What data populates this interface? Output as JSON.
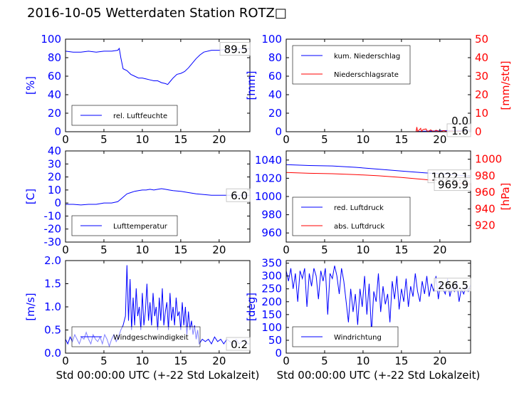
{
  "title": "2016-10-05 Wetterdaten Station ROTZ□",
  "colors": {
    "primary": "#0000ff",
    "secondary": "#ff0000",
    "frame": "#000000"
  },
  "chart_data": [
    {
      "type": "line",
      "ylabel": "[%]",
      "xlabel": "",
      "xlim": [
        0,
        24
      ],
      "ylim": [
        0,
        100
      ],
      "xticks": [
        0,
        5,
        10,
        15,
        20
      ],
      "yticks": [
        0,
        20,
        40,
        60,
        80,
        100
      ],
      "last_value_label": "89.5",
      "legend_position": "lower-left",
      "series": [
        {
          "name": "rel. Luftfeuchte",
          "color": "#0000ff",
          "x": [
            0,
            1,
            2,
            3,
            4,
            5,
            6,
            6.8,
            7.0,
            7.2,
            7.5,
            8,
            8.5,
            9,
            9.5,
            10,
            10.5,
            11,
            11.5,
            12,
            12.5,
            13,
            13.3,
            13.7,
            14,
            14.5,
            15,
            15.5,
            16,
            16.5,
            17,
            17.5,
            18,
            19,
            20,
            21,
            22,
            23,
            24
          ],
          "y": [
            87,
            86,
            86,
            87,
            86,
            87,
            87,
            88,
            90,
            80,
            68,
            66,
            62,
            60,
            58,
            58,
            57,
            56,
            55,
            55,
            53,
            52,
            51,
            55,
            58,
            62,
            63,
            65,
            69,
            74,
            79,
            83,
            86,
            88,
            88,
            89,
            89,
            89.5,
            89.5
          ]
        }
      ]
    },
    {
      "type": "line",
      "ylabel": "[mm]",
      "y2label": "[mm/std]",
      "xlabel": "",
      "xlim": [
        0,
        24
      ],
      "ylim": [
        0,
        100
      ],
      "y2lim": [
        0,
        50
      ],
      "xticks": [
        0,
        5,
        10,
        15,
        20
      ],
      "yticks": [
        0,
        20,
        40,
        60,
        80,
        100
      ],
      "y2ticks": [
        0,
        10,
        20,
        30,
        40,
        50
      ],
      "last_value_label": "1.6",
      "second_value_label": "0.0",
      "legend_position": "upper-left",
      "series": [
        {
          "name": "kum. Niederschlag",
          "color": "#0000ff",
          "x": [
            0,
            16.8,
            17.2,
            18,
            19,
            20,
            21,
            22,
            23,
            24
          ],
          "y": [
            0,
            0,
            0.3,
            0.5,
            0.8,
            1.0,
            1.2,
            1.4,
            1.5,
            1.6
          ]
        },
        {
          "name": "Niederschlagsrate",
          "color": "#ff0000",
          "axis": "right",
          "x": [
            0,
            16.9,
            17.0,
            17.1,
            17.5,
            17.6,
            17.8,
            18.2,
            18.4,
            18.8,
            19.2,
            19.5,
            20,
            20.5,
            21,
            21.5,
            22,
            22.5,
            23,
            24
          ],
          "y": [
            0,
            0,
            2.5,
            0,
            1.8,
            0,
            1.2,
            1.5,
            0,
            1.0,
            0,
            0.8,
            0,
            0.6,
            0,
            0.5,
            0,
            0.4,
            0,
            0
          ]
        }
      ]
    },
    {
      "type": "line",
      "ylabel": "[C]",
      "xlabel": "",
      "xlim": [
        0,
        24
      ],
      "ylim": [
        -30,
        40
      ],
      "xticks": [
        0,
        5,
        10,
        15,
        20
      ],
      "yticks": [
        -30,
        -20,
        -10,
        0,
        10,
        20,
        30,
        40
      ],
      "last_value_label": "6.0",
      "legend_position": "lower-left",
      "series": [
        {
          "name": "Lufttemperatur",
          "color": "#0000ff",
          "x": [
            0,
            1,
            2,
            3,
            4,
            5,
            6,
            6.8,
            7.2,
            7.6,
            8,
            8.5,
            9,
            9.5,
            10,
            10.5,
            11,
            11.5,
            12,
            12.5,
            13,
            13.5,
            14,
            15,
            16,
            17,
            18,
            19,
            20,
            21,
            22,
            23,
            24
          ],
          "y": [
            -1,
            -1,
            -1.5,
            -1,
            -1,
            0,
            0,
            1,
            3,
            5,
            7,
            8,
            9,
            9.5,
            10,
            10,
            10.5,
            10,
            10.5,
            11,
            10.5,
            10,
            9.5,
            9,
            8,
            7,
            6.5,
            6,
            6,
            6,
            6,
            6,
            6
          ]
        }
      ]
    },
    {
      "type": "line",
      "ylabel": "",
      "y2label": "[hPa]",
      "xlabel": "",
      "xlim": [
        0,
        24
      ],
      "ylim": [
        950,
        1050
      ],
      "y2lim": [
        900,
        1010
      ],
      "xticks": [
        0,
        5,
        10,
        15,
        20
      ],
      "yticks": [
        960,
        980,
        1000,
        1020,
        1040
      ],
      "y2ticks": [
        920,
        940,
        960,
        980,
        1000
      ],
      "last_value_label": "1022.1",
      "second_value_label": "969.9",
      "legend_position": "lower-left",
      "series": [
        {
          "name": "red. Luftdruck",
          "color": "#0000ff",
          "x": [
            0,
            3,
            6,
            9,
            12,
            15,
            18,
            21,
            24
          ],
          "y": [
            1035,
            1034,
            1033.5,
            1032,
            1030,
            1028,
            1026,
            1024.5,
            1022.1
          ]
        },
        {
          "name": "abs. Luftdruck",
          "color": "#ff0000",
          "axis": "right",
          "x": [
            0,
            3,
            6,
            9,
            12,
            15,
            18,
            21,
            24
          ],
          "y": [
            984,
            983,
            982.5,
            981.5,
            980,
            978,
            975.5,
            972.5,
            969.9
          ]
        }
      ]
    },
    {
      "type": "line",
      "ylabel": "[m/s]",
      "xlabel": "Std 00:00:00 UTC (+-22 Std Lokalzeit)",
      "xlim": [
        0,
        24
      ],
      "ylim": [
        0,
        2
      ],
      "xticks": [
        0,
        5,
        10,
        15,
        20
      ],
      "yticks": [
        0.0,
        0.5,
        1.0,
        1.5,
        2.0
      ],
      "last_value_label": "0.2",
      "legend_position": "lower-center",
      "series": [
        {
          "name": "Windgeschwindigkeit",
          "color": "#0000ff",
          "x": [
            0,
            0.3,
            0.6,
            0.9,
            1.2,
            1.5,
            1.8,
            2.1,
            2.4,
            2.7,
            3.0,
            3.3,
            3.6,
            3.9,
            4.2,
            4.5,
            4.8,
            5.1,
            5.4,
            5.7,
            6.0,
            6.3,
            6.6,
            6.9,
            7.2,
            7.5,
            7.8,
            8.0,
            8.2,
            8.4,
            8.6,
            8.8,
            9.0,
            9.2,
            9.4,
            9.6,
            9.8,
            10.0,
            10.2,
            10.4,
            10.6,
            10.8,
            11.0,
            11.2,
            11.4,
            11.6,
            11.8,
            12.0,
            12.2,
            12.4,
            12.6,
            12.8,
            13.0,
            13.2,
            13.4,
            13.6,
            13.8,
            14.0,
            14.2,
            14.4,
            14.6,
            14.8,
            15.0,
            15.2,
            15.4,
            15.6,
            15.8,
            16.0,
            16.2,
            16.4,
            16.6,
            16.8,
            17.0,
            17.2,
            17.4,
            17.8,
            18.2,
            18.6,
            19.0,
            19.4,
            19.8,
            20.2,
            20.6,
            21.0,
            21.4,
            21.8,
            22.2,
            22.6,
            23.0,
            23.4,
            23.7,
            24
          ],
          "y": [
            0.3,
            0.2,
            0.35,
            0.25,
            0.4,
            0.3,
            0.2,
            0.35,
            0.3,
            0.45,
            0.3,
            0.2,
            0.4,
            0.3,
            0.25,
            0.35,
            0.2,
            0.4,
            0.3,
            0.15,
            0.3,
            0.4,
            0.25,
            0.35,
            0.5,
            0.6,
            0.8,
            1.9,
            0.7,
            1.6,
            0.5,
            1.2,
            0.6,
            1.4,
            0.8,
            1.0,
            0.5,
            1.3,
            0.6,
            0.9,
            1.5,
            0.7,
            1.1,
            0.6,
            1.3,
            0.8,
            1.0,
            0.5,
            1.2,
            0.7,
            1.4,
            0.6,
            0.9,
            1.1,
            0.5,
            1.3,
            0.7,
            1.0,
            0.6,
            1.2,
            0.8,
            0.9,
            0.5,
            1.1,
            0.6,
            1.0,
            0.4,
            0.9,
            0.5,
            0.7,
            0.4,
            0.6,
            0.3,
            0.5,
            0.2,
            0.3,
            0.25,
            0.3,
            0.2,
            0.35,
            0.25,
            0.3,
            0.2,
            0.3,
            0.25,
            0.2,
            0.3,
            0.2,
            0.25,
            0.3,
            0.2,
            0.2
          ]
        }
      ]
    },
    {
      "type": "line",
      "ylabel": "[deg]",
      "xlabel": "Std 00:00:00 UTC (+-22 Std Lokalzeit)",
      "xlim": [
        0,
        24
      ],
      "ylim": [
        0,
        360
      ],
      "xticks": [
        0,
        5,
        10,
        15,
        20
      ],
      "yticks": [
        0,
        50,
        100,
        150,
        200,
        250,
        300,
        350
      ],
      "last_value_label": "266.5",
      "legend_position": "lower-left",
      "series": [
        {
          "name": "Windrichtung",
          "color": "#0000ff",
          "x": [
            0,
            0.3,
            0.6,
            0.9,
            1.2,
            1.5,
            1.8,
            2.1,
            2.4,
            2.7,
            3.0,
            3.3,
            3.6,
            3.9,
            4.2,
            4.5,
            4.8,
            5.1,
            5.4,
            5.7,
            6.0,
            6.3,
            6.6,
            6.9,
            7.2,
            7.5,
            7.8,
            8.1,
            8.4,
            8.7,
            9.0,
            9.3,
            9.6,
            9.9,
            10.2,
            10.5,
            10.8,
            11.1,
            11.4,
            11.7,
            12.0,
            12.3,
            12.6,
            12.9,
            13.2,
            13.5,
            13.8,
            14.1,
            14.4,
            14.7,
            15.0,
            15.3,
            15.6,
            15.9,
            16.2,
            16.5,
            16.8,
            17.1,
            17.4,
            17.7,
            18.0,
            18.3,
            18.6,
            18.9,
            19.2,
            19.5,
            19.8,
            20.1,
            20.4,
            20.7,
            21.0,
            21.3,
            21.6,
            21.9,
            22.2,
            22.5,
            22.8,
            23.1,
            23.4,
            23.7,
            24
          ],
          "y": [
            320,
            280,
            330,
            250,
            310,
            200,
            320,
            290,
            330,
            180,
            310,
            260,
            330,
            300,
            210,
            320,
            280,
            330,
            150,
            310,
            290,
            340,
            300,
            230,
            330,
            280,
            200,
            120,
            250,
            160,
            230,
            110,
            250,
            180,
            300,
            150,
            270,
            80,
            240,
            200,
            310,
            160,
            260,
            190,
            230,
            120,
            280,
            210,
            300,
            170,
            250,
            200,
            290,
            180,
            260,
            220,
            310,
            240,
            200,
            280,
            230,
            300,
            220,
            270,
            240,
            300,
            210,
            280,
            250,
            230,
            290,
            220,
            260,
            240,
            280,
            200,
            250,
            230,
            260,
            240,
            266.5
          ]
        }
      ]
    }
  ]
}
